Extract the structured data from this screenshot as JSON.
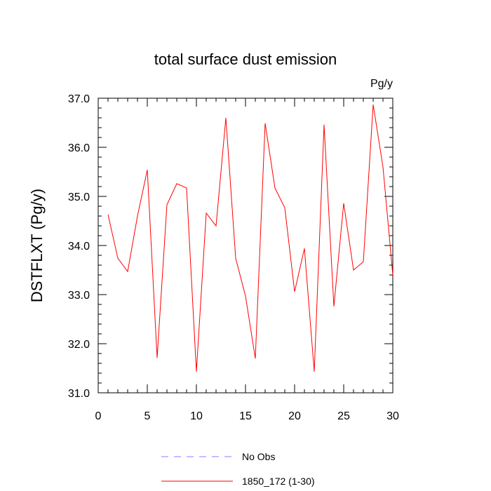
{
  "chart_data": {
    "type": "line",
    "title": "total surface dust emission",
    "units": "Pg/y",
    "xlabel": "",
    "ylabel": "DSTFLXT  (Pg/y)",
    "xlim": [
      0,
      30
    ],
    "ylim": [
      31.0,
      37.0
    ],
    "x_ticks": [
      0,
      5,
      10,
      15,
      20,
      25,
      30
    ],
    "y_ticks": [
      31.0,
      32.0,
      33.0,
      34.0,
      35.0,
      36.0,
      37.0
    ],
    "y_tick_labels": [
      "31.0",
      "32.0",
      "33.0",
      "34.0",
      "35.0",
      "36.0",
      "37.0"
    ],
    "grid": false,
    "legend_position": "bottom",
    "series": [
      {
        "name": "No Obs",
        "color": "#8080ff",
        "style": "dashed",
        "x": [],
        "values": []
      },
      {
        "name": "1850_172 (1-30)",
        "color": "#ff0000",
        "style": "solid",
        "x": [
          1,
          2,
          3,
          4,
          5,
          6,
          7,
          8,
          9,
          10,
          11,
          12,
          13,
          14,
          15,
          16,
          17,
          18,
          19,
          20,
          21,
          22,
          23,
          24,
          25,
          26,
          27,
          28,
          29,
          30
        ],
        "values": [
          34.63,
          33.74,
          33.47,
          34.6,
          35.54,
          31.71,
          34.83,
          35.26,
          35.17,
          31.43,
          34.66,
          34.4,
          36.6,
          33.74,
          32.97,
          31.7,
          36.49,
          35.17,
          34.77,
          33.06,
          33.94,
          31.43,
          36.46,
          32.76,
          34.86,
          33.5,
          33.67,
          36.87,
          35.6,
          33.4
        ]
      }
    ]
  }
}
